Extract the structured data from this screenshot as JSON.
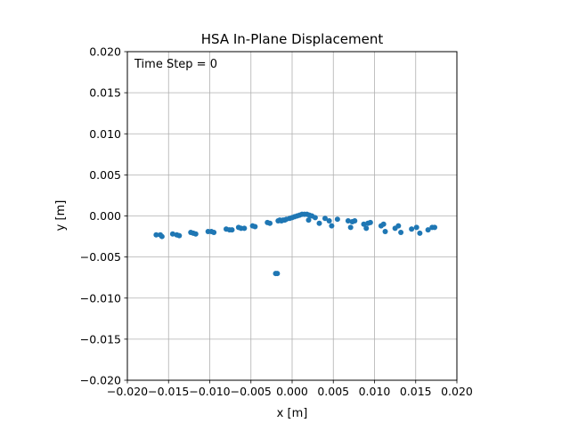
{
  "chart_data": {
    "type": "scatter",
    "title": "HSA In-Plane Displacement",
    "xlabel": "x [m]",
    "ylabel": "y [m]",
    "xlim": [
      -0.02,
      0.02
    ],
    "ylim": [
      -0.02,
      0.02
    ],
    "xticks": [
      -0.02,
      -0.015,
      -0.01,
      -0.005,
      0.0,
      0.005,
      0.01,
      0.015,
      0.02
    ],
    "yticks": [
      -0.02,
      -0.015,
      -0.01,
      -0.005,
      0.0,
      0.005,
      0.01,
      0.015,
      0.02
    ],
    "xtick_labels": [
      "−0.020",
      "−0.015",
      "−0.010",
      "−0.005",
      "0.000",
      "0.005",
      "0.010",
      "0.015",
      "0.020"
    ],
    "ytick_labels": [
      "−0.020",
      "−0.015",
      "−0.010",
      "−0.005",
      "0.000",
      "0.005",
      "0.010",
      "0.015",
      "0.020"
    ],
    "grid": true,
    "annotation": "Time Step = 0",
    "marker_color": "#1f77b4",
    "points": [
      {
        "x": -0.0165,
        "y": -0.0023
      },
      {
        "x": -0.016,
        "y": -0.0023
      },
      {
        "x": -0.0158,
        "y": -0.0025
      },
      {
        "x": -0.0145,
        "y": -0.0022
      },
      {
        "x": -0.014,
        "y": -0.0023
      },
      {
        "x": -0.0137,
        "y": -0.0024
      },
      {
        "x": -0.0123,
        "y": -0.002
      },
      {
        "x": -0.012,
        "y": -0.0021
      },
      {
        "x": -0.0117,
        "y": -0.0022
      },
      {
        "x": -0.0102,
        "y": -0.0019
      },
      {
        "x": -0.0098,
        "y": -0.0019
      },
      {
        "x": -0.0095,
        "y": -0.002
      },
      {
        "x": -0.008,
        "y": -0.0016
      },
      {
        "x": -0.0076,
        "y": -0.0017
      },
      {
        "x": -0.0073,
        "y": -0.0017
      },
      {
        "x": -0.0065,
        "y": -0.0014
      },
      {
        "x": -0.0062,
        "y": -0.0015
      },
      {
        "x": -0.0058,
        "y": -0.0015
      },
      {
        "x": -0.0048,
        "y": -0.0012
      },
      {
        "x": -0.0045,
        "y": -0.0013
      },
      {
        "x": -0.003,
        "y": -0.0008
      },
      {
        "x": -0.0027,
        "y": -0.0009
      },
      {
        "x": -0.0017,
        "y": -0.0006
      },
      {
        "x": -0.0015,
        "y": -0.0005
      },
      {
        "x": -0.0013,
        "y": -0.0006
      },
      {
        "x": -0.0011,
        "y": -0.0005
      },
      {
        "x": -0.0009,
        "y": -0.0005
      },
      {
        "x": -0.0007,
        "y": -0.0004
      },
      {
        "x": -0.0003,
        "y": -0.0003
      },
      {
        "x": 0.0,
        "y": -0.0002
      },
      {
        "x": 0.0003,
        "y": -0.0001
      },
      {
        "x": 0.0006,
        "y": 0.0
      },
      {
        "x": 0.0009,
        "y": 0.0001
      },
      {
        "x": 0.0012,
        "y": 0.0002
      },
      {
        "x": 0.0015,
        "y": 0.0002
      },
      {
        "x": 0.0018,
        "y": 0.0002
      },
      {
        "x": 0.0021,
        "y": 0.0001
      },
      {
        "x": 0.0024,
        "y": 0.0
      },
      {
        "x": 0.0028,
        "y": -0.0002
      },
      {
        "x": 0.002,
        "y": -0.0005
      },
      {
        "x": 0.0033,
        "y": -0.0009
      },
      {
        "x": 0.004,
        "y": -0.0003
      },
      {
        "x": 0.0045,
        "y": -0.0006
      },
      {
        "x": 0.0048,
        "y": -0.0012
      },
      {
        "x": 0.0055,
        "y": -0.0004
      },
      {
        "x": 0.0068,
        "y": -0.0006
      },
      {
        "x": 0.0071,
        "y": -0.0014
      },
      {
        "x": 0.0073,
        "y": -0.0007
      },
      {
        "x": 0.0076,
        "y": -0.0006
      },
      {
        "x": 0.0087,
        "y": -0.001
      },
      {
        "x": 0.009,
        "y": -0.0015
      },
      {
        "x": 0.0092,
        "y": -0.0009
      },
      {
        "x": 0.0095,
        "y": -0.0008
      },
      {
        "x": 0.0108,
        "y": -0.0012
      },
      {
        "x": 0.0111,
        "y": -0.001
      },
      {
        "x": 0.0113,
        "y": -0.0019
      },
      {
        "x": 0.0125,
        "y": -0.0015
      },
      {
        "x": 0.0129,
        "y": -0.0012
      },
      {
        "x": 0.0132,
        "y": -0.002
      },
      {
        "x": 0.0145,
        "y": -0.0016
      },
      {
        "x": 0.0151,
        "y": -0.0014
      },
      {
        "x": 0.0155,
        "y": -0.0021
      },
      {
        "x": 0.0165,
        "y": -0.0017
      },
      {
        "x": 0.017,
        "y": -0.0014
      },
      {
        "x": 0.0173,
        "y": -0.0014
      },
      {
        "x": -0.002,
        "y": -0.007
      },
      {
        "x": -0.0018,
        "y": -0.007
      }
    ]
  }
}
